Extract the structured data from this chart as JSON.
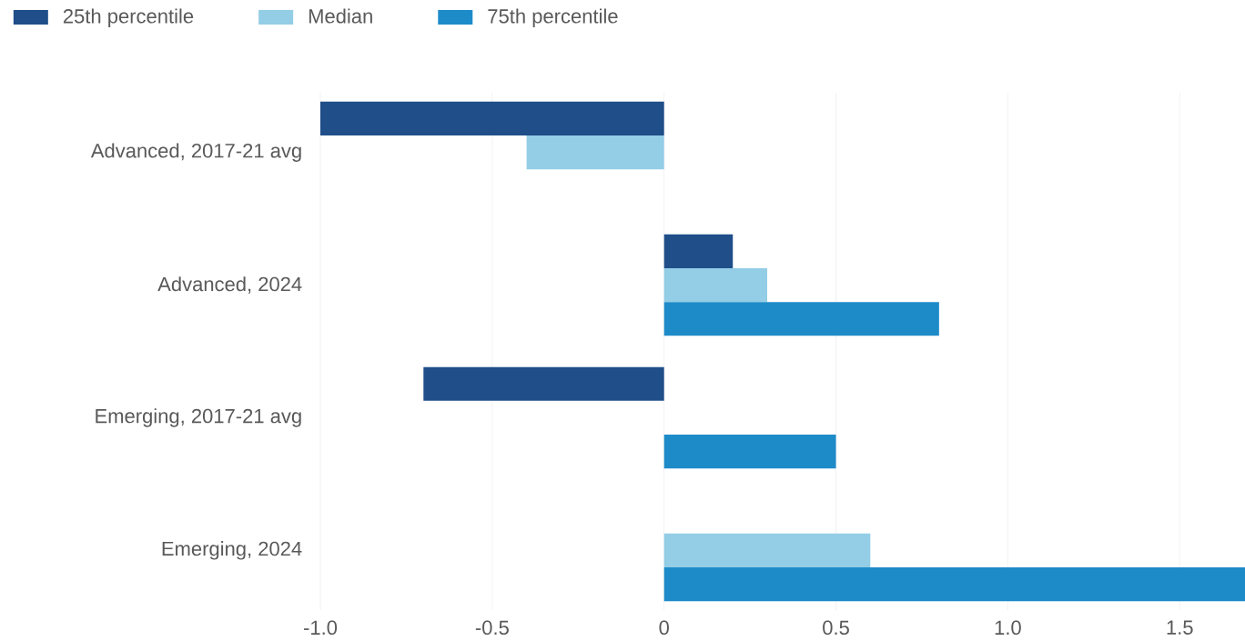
{
  "chart_data": {
    "type": "bar",
    "orientation": "horizontal",
    "categories": [
      "Advanced, 2017-21 avg",
      "Advanced, 2024",
      "Emerging, 2017-21 avg",
      "Emerging, 2024"
    ],
    "series": [
      {
        "name": "25th percentile",
        "color": "#1f4e89",
        "values": [
          -1.0,
          0.2,
          -0.7,
          0
        ]
      },
      {
        "name": "Median",
        "color": "#93cde6",
        "values": [
          -0.4,
          0.3,
          0,
          0.6
        ]
      },
      {
        "name": "75th percentile",
        "color": "#1e8bc9",
        "values": [
          0,
          0.8,
          0.5,
          1.69
        ]
      }
    ],
    "xlim": [
      -1,
      1.69
    ],
    "xticks": [
      {
        "value": -1,
        "label": "-1.0"
      },
      {
        "value": -0.5,
        "label": "-0.5"
      },
      0,
      0.5,
      {
        "value": 1,
        "label": "1.0"
      },
      1.5
    ],
    "grid": "x",
    "legend": "top left"
  }
}
